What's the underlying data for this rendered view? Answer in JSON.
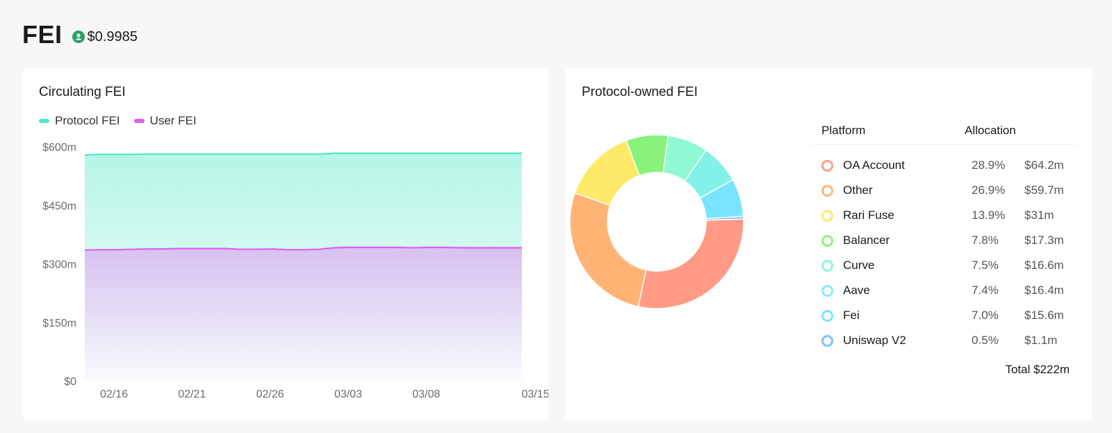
{
  "header": {
    "title": "FEI",
    "price": "$0.9985",
    "price_icon": "peg-status-icon",
    "price_icon_color": "#2e9e6a"
  },
  "circulating": {
    "title": "Circulating FEI",
    "legend": [
      {
        "label": "Protocol FEI",
        "color": "#4ee8c5"
      },
      {
        "label": "User FEI",
        "color": "#e25cf2"
      }
    ]
  },
  "protocol_owned": {
    "title": "Protocol-owned FEI",
    "table": {
      "header_platform": "Platform",
      "header_allocation": "Allocation",
      "rows": [
        {
          "name": "OA Account",
          "pct": "28.9%",
          "value": "$64.2m",
          "color": "#ff9b85"
        },
        {
          "name": "Other",
          "pct": "26.9%",
          "value": "$59.7m",
          "color": "#ffb374"
        },
        {
          "name": "Rari Fuse",
          "pct": "13.9%",
          "value": "$31m",
          "color": "#ffe968"
        },
        {
          "name": "Balancer",
          "pct": "7.8%",
          "value": "$17.3m",
          "color": "#89f27a"
        },
        {
          "name": "Curve",
          "pct": "7.5%",
          "value": "$16.6m",
          "color": "#8ef9d3"
        },
        {
          "name": "Aave",
          "pct": "7.4%",
          "value": "$16.4m",
          "color": "#84f0ea"
        },
        {
          "name": "Fei",
          "pct": "7.0%",
          "value": "$15.6m",
          "color": "#78e4ff"
        },
        {
          "name": "Uniswap V2",
          "pct": "0.5%",
          "value": "$1.1m",
          "color": "#7ec2ff"
        }
      ],
      "total": "Total $222m"
    }
  },
  "chart_data": [
    {
      "type": "area",
      "title": "Circulating FEI",
      "xlabel": "",
      "ylabel": "",
      "x_ticks": [
        "02/16",
        "02/21",
        "02/26",
        "03/03",
        "03/08",
        "03/15"
      ],
      "y_ticks": [
        "$600m",
        "$450m",
        "$300m",
        "$150m",
        "$0"
      ],
      "ylim": [
        0,
        600
      ],
      "x": [
        "02/16",
        "02/17",
        "02/18",
        "02/19",
        "02/20",
        "02/21",
        "02/22",
        "02/23",
        "02/24",
        "02/25",
        "02/26",
        "02/27",
        "02/28",
        "03/01",
        "03/02",
        "03/03",
        "03/04",
        "03/05",
        "03/06",
        "03/07",
        "03/08",
        "03/09",
        "03/10",
        "03/11",
        "03/12",
        "03/13",
        "03/14",
        "03/15",
        "03/16"
      ],
      "series": [
        {
          "name": "Protocol FEI",
          "color": "#4ee8c5",
          "values": [
            579,
            580,
            580,
            580,
            581,
            581,
            581,
            581,
            581,
            581,
            581,
            581,
            581,
            581,
            581,
            581,
            583,
            583,
            583,
            583,
            583,
            583,
            583,
            583,
            583,
            583,
            583,
            583,
            583
          ]
        },
        {
          "name": "User FEI",
          "color": "#e25cf2",
          "values": [
            335,
            336,
            336,
            337,
            338,
            338,
            339,
            339,
            339,
            339,
            337,
            337,
            338,
            336,
            336,
            337,
            341,
            342,
            342,
            342,
            342,
            341,
            342,
            342,
            341,
            341,
            341,
            341,
            341
          ]
        }
      ],
      "grid": false,
      "legend": "top-left"
    },
    {
      "type": "pie",
      "title": "Protocol-owned FEI",
      "donut": true,
      "categories": [
        "OA Account",
        "Other",
        "Rari Fuse",
        "Balancer",
        "Curve",
        "Aave",
        "Fei",
        "Uniswap V2"
      ],
      "values": [
        28.9,
        26.9,
        13.9,
        7.8,
        7.5,
        7.4,
        7.0,
        0.5
      ],
      "colors": [
        "#ff9b85",
        "#ffb374",
        "#ffe968",
        "#89f27a",
        "#8ef9d3",
        "#84f0ea",
        "#78e4ff",
        "#7ec2ff"
      ]
    }
  ]
}
